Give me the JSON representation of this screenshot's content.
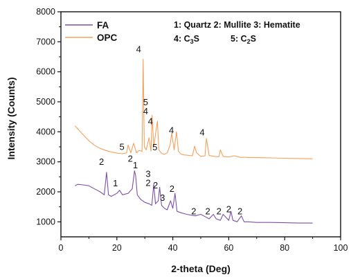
{
  "chart_data": {
    "type": "line",
    "title": "",
    "xlabel": "2-theta (Deg)",
    "ylabel": "Intensity (Counts)",
    "xlim": [
      0,
      100
    ],
    "ylim": [
      500,
      8000
    ],
    "x_ticks": [
      "0",
      "20",
      "40",
      "60",
      "80",
      "100"
    ],
    "y_ticks": [
      "1000",
      "2000",
      "3000",
      "4000",
      "5000",
      "6000",
      "7000",
      "8000"
    ],
    "grid": false,
    "legend_position": "top-left",
    "phase_key": {
      "line1": "1: Quartz 2: Mullite 3: Hematite",
      "line2_a": "4: C",
      "line2_a_sub": "3",
      "line2_a_tail": "S",
      "line2_b": "5: C",
      "line2_b_sub": "2",
      "line2_b_tail": "S"
    },
    "series": [
      {
        "name": "OPC",
        "color": "#f5a05a",
        "x": [
          5,
          6,
          8,
          10,
          12,
          14,
          16,
          18,
          20,
          22,
          23.5,
          24,
          25,
          26,
          27,
          28,
          29,
          29.4,
          29.8,
          30.5,
          31.5,
          32.2,
          32.6,
          33.2,
          34,
          34.5,
          35,
          36,
          37,
          38,
          39,
          39.6,
          40.5,
          41.3,
          42,
          43,
          44,
          45,
          46,
          47,
          47.8,
          48.5,
          50,
          51.5,
          52,
          53,
          55,
          56.5,
          57,
          58,
          60,
          62,
          64,
          66,
          68,
          70,
          75,
          80,
          85,
          90
        ],
        "y": [
          4200,
          4100,
          3900,
          3700,
          3550,
          3450,
          3380,
          3330,
          3290,
          3270,
          3300,
          3560,
          3300,
          3620,
          3300,
          3380,
          3350,
          6420,
          3500,
          3400,
          3800,
          3350,
          4550,
          3500,
          4050,
          4350,
          3400,
          3280,
          3250,
          3300,
          3550,
          3950,
          3400,
          4000,
          3350,
          3250,
          3230,
          3220,
          3210,
          3200,
          3520,
          3300,
          3180,
          3200,
          3780,
          3210,
          3180,
          3170,
          3400,
          3180,
          3160,
          3200,
          3150,
          3150,
          3140,
          3140,
          3130,
          3120,
          3110,
          3100
        ]
      },
      {
        "name": "FA",
        "color": "#7b4fa6",
        "x": [
          5,
          6,
          8,
          10,
          12,
          14,
          15.5,
          16.3,
          17,
          18,
          20,
          21,
          22,
          24,
          25.5,
          26.3,
          26.7,
          27.3,
          28.5,
          30,
          31.5,
          32.5,
          33.2,
          33.8,
          34.8,
          35.3,
          36,
          37,
          38,
          39.2,
          40,
          40.8,
          41.5,
          43,
          45,
          48,
          50,
          52,
          53,
          54.5,
          55.5,
          57,
          58,
          60,
          60.8,
          61.5,
          63,
          64.5,
          65.5,
          67,
          70,
          75,
          80,
          85,
          90
        ],
        "y": [
          2200,
          2250,
          2230,
          2200,
          2100,
          2000,
          1900,
          2650,
          1900,
          1850,
          1950,
          2050,
          1900,
          1950,
          2100,
          2700,
          2550,
          1900,
          1750,
          1650,
          1600,
          1550,
          2250,
          1600,
          1700,
          2150,
          1550,
          1450,
          1400,
          1700,
          1450,
          1950,
          1350,
          1300,
          1250,
          1200,
          1250,
          1150,
          1100,
          1250,
          1100,
          1050,
          1250,
          1050,
          1350,
          1050,
          1000,
          1200,
          1000,
          1000,
          980,
          980,
          970,
          960,
          960
        ]
      }
    ],
    "annotations": [
      {
        "text": "5",
        "x": 21.8,
        "y": 3400
      },
      {
        "text": "4",
        "x": 27.8,
        "y": 6650
      },
      {
        "text": "5",
        "x": 30.3,
        "y": 4880
      },
      {
        "text": "4",
        "x": 30.3,
        "y": 4580
      },
      {
        "text": "4",
        "x": 32.0,
        "y": 4250
      },
      {
        "text": "5",
        "x": 33.6,
        "y": 3380
      },
      {
        "text": "4",
        "x": 39.5,
        "y": 3950
      },
      {
        "text": "4",
        "x": 50.5,
        "y": 3880
      },
      {
        "text": "2",
        "x": 14.5,
        "y": 2900
      },
      {
        "text": "1",
        "x": 19.5,
        "y": 2180
      },
      {
        "text": "2",
        "x": 24.8,
        "y": 3000
      },
      {
        "text": "1",
        "x": 26.6,
        "y": 2790
      },
      {
        "text": "3",
        "x": 31.2,
        "y": 2500
      },
      {
        "text": "2",
        "x": 31.2,
        "y": 2200
      },
      {
        "text": "2",
        "x": 33.8,
        "y": 2120
      },
      {
        "text": "3",
        "x": 36.3,
        "y": 1700
      },
      {
        "text": "2",
        "x": 39.7,
        "y": 2000
      },
      {
        "text": "2",
        "x": 47.5,
        "y": 1250
      },
      {
        "text": "2",
        "x": 52.5,
        "y": 1250
      },
      {
        "text": "2",
        "x": 56.5,
        "y": 1250
      },
      {
        "text": "2",
        "x": 60.0,
        "y": 1320
      },
      {
        "text": "2",
        "x": 64.0,
        "y": 1250
      }
    ]
  }
}
